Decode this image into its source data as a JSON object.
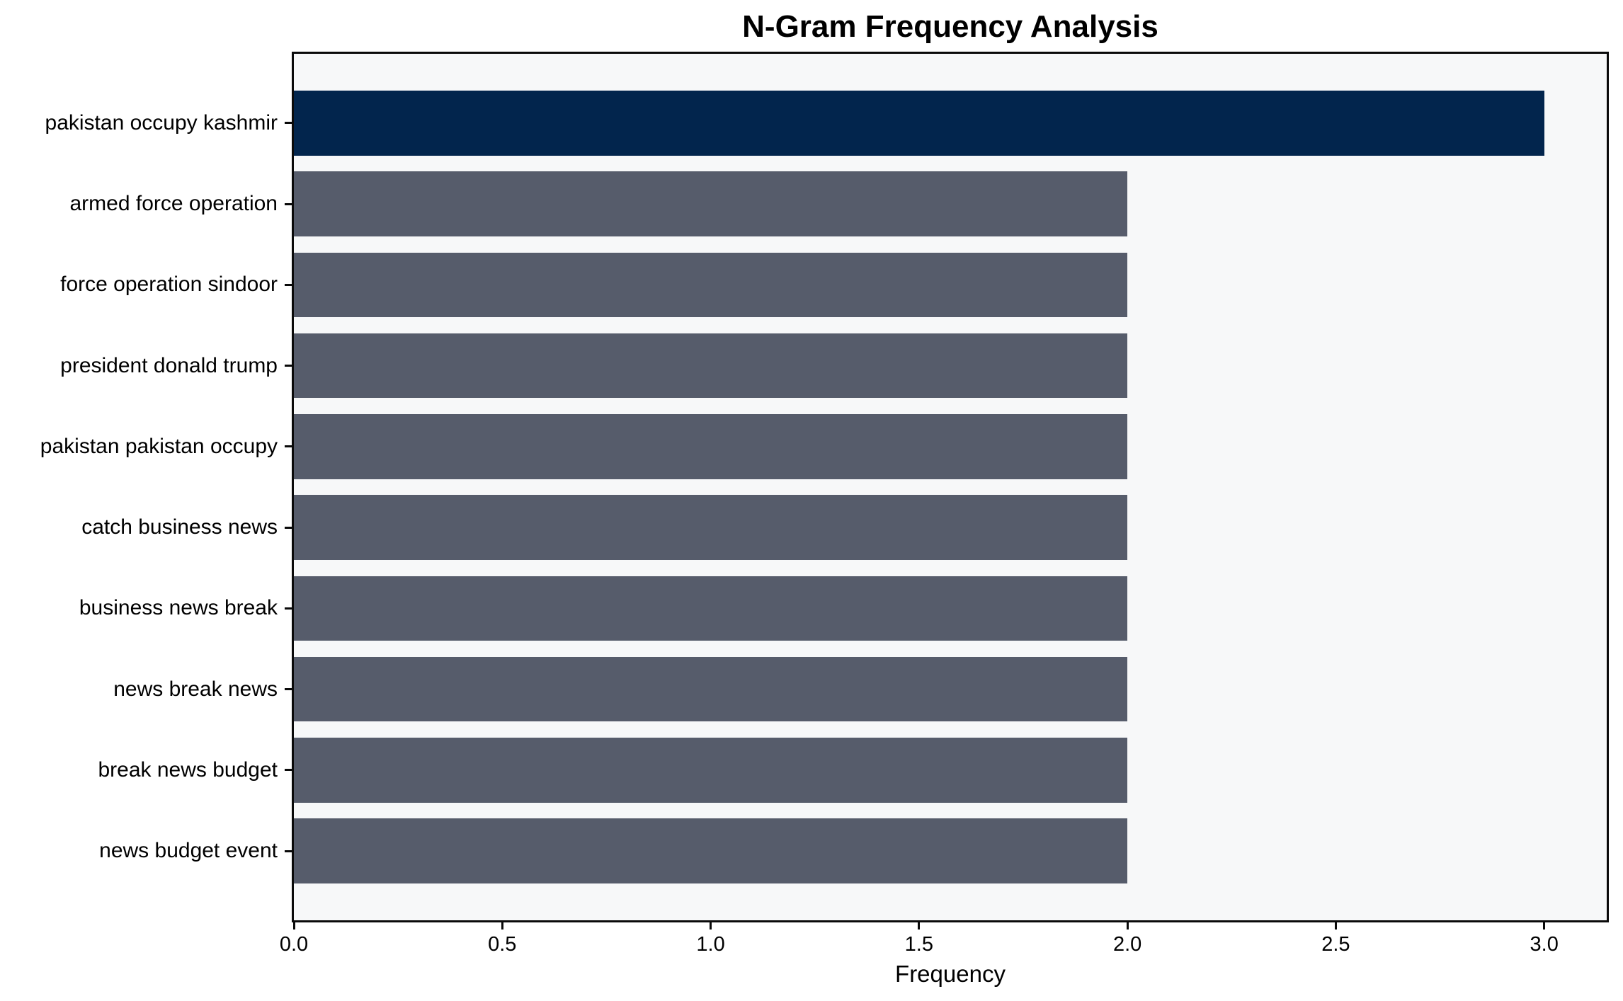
{
  "title": "N-Gram Frequency Analysis",
  "axes": {
    "xlabel": "Frequency",
    "ylabel": ""
  },
  "colors": {
    "top_bar": "#02254D",
    "bar_default": "#565C6B",
    "plot_background": "#F7F8F9",
    "page_background": "#FFFFFF",
    "spine": "#0A0A0A"
  },
  "chart_data": {
    "type": "bar",
    "orientation": "horizontal",
    "title": "N-Gram Frequency Analysis",
    "xlabel": "Frequency",
    "ylabel": "",
    "categories": [
      "pakistan occupy kashmir",
      "armed force operation",
      "force operation sindoor",
      "president donald trump",
      "pakistan pakistan occupy",
      "catch business news",
      "business news break",
      "news break news",
      "break news budget",
      "news budget event"
    ],
    "values": [
      3,
      2,
      2,
      2,
      2,
      2,
      2,
      2,
      2,
      2
    ],
    "bar_colors": [
      "#02254D",
      "#565C6B",
      "#565C6B",
      "#565C6B",
      "#565C6B",
      "#565C6B",
      "#565C6B",
      "#565C6B",
      "#565C6B",
      "#565C6B"
    ],
    "xlim": [
      0,
      3.15
    ],
    "xticks": [
      0,
      0.5,
      1.0,
      1.5,
      2.0,
      2.5,
      3.0
    ],
    "xtick_labels": [
      "0.0",
      "0.5",
      "1.0",
      "1.5",
      "2.0",
      "2.5",
      "3.0"
    ],
    "grid": false,
    "legend": null,
    "bar_height_fraction": 0.8
  }
}
